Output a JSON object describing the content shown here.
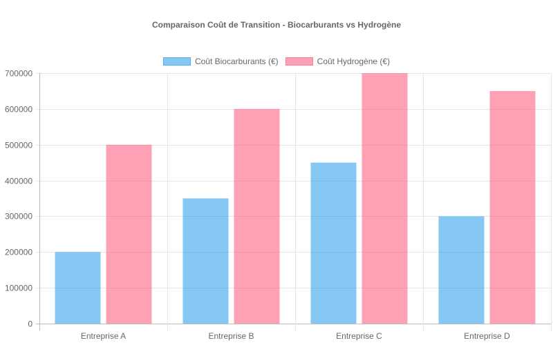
{
  "chart_data": {
    "type": "bar",
    "title": "Comparaison Coût de Transition - Biocarburants vs Hydrogène",
    "categories": [
      "Entreprise A",
      "Entreprise B",
      "Entreprise C",
      "Entreprise D"
    ],
    "series": [
      {
        "name": "Coût Biocarburants (€)",
        "values": [
          200000,
          350000,
          450000,
          300000
        ],
        "color": "#36a2eb",
        "fill": "rgba(54,162,235,0.6)"
      },
      {
        "name": "Coût Hydrogène (€)",
        "values": [
          500000,
          600000,
          700000,
          650000
        ],
        "color": "#ff6384",
        "fill": "rgba(255,99,132,0.6)"
      }
    ],
    "xlabel": "",
    "ylabel": "",
    "ylim": [
      0,
      700000
    ],
    "yticks": [
      "0",
      "100000",
      "200000",
      "300000",
      "400000",
      "500000",
      "600000",
      "700000"
    ],
    "grid": true,
    "legend_position": "top"
  }
}
